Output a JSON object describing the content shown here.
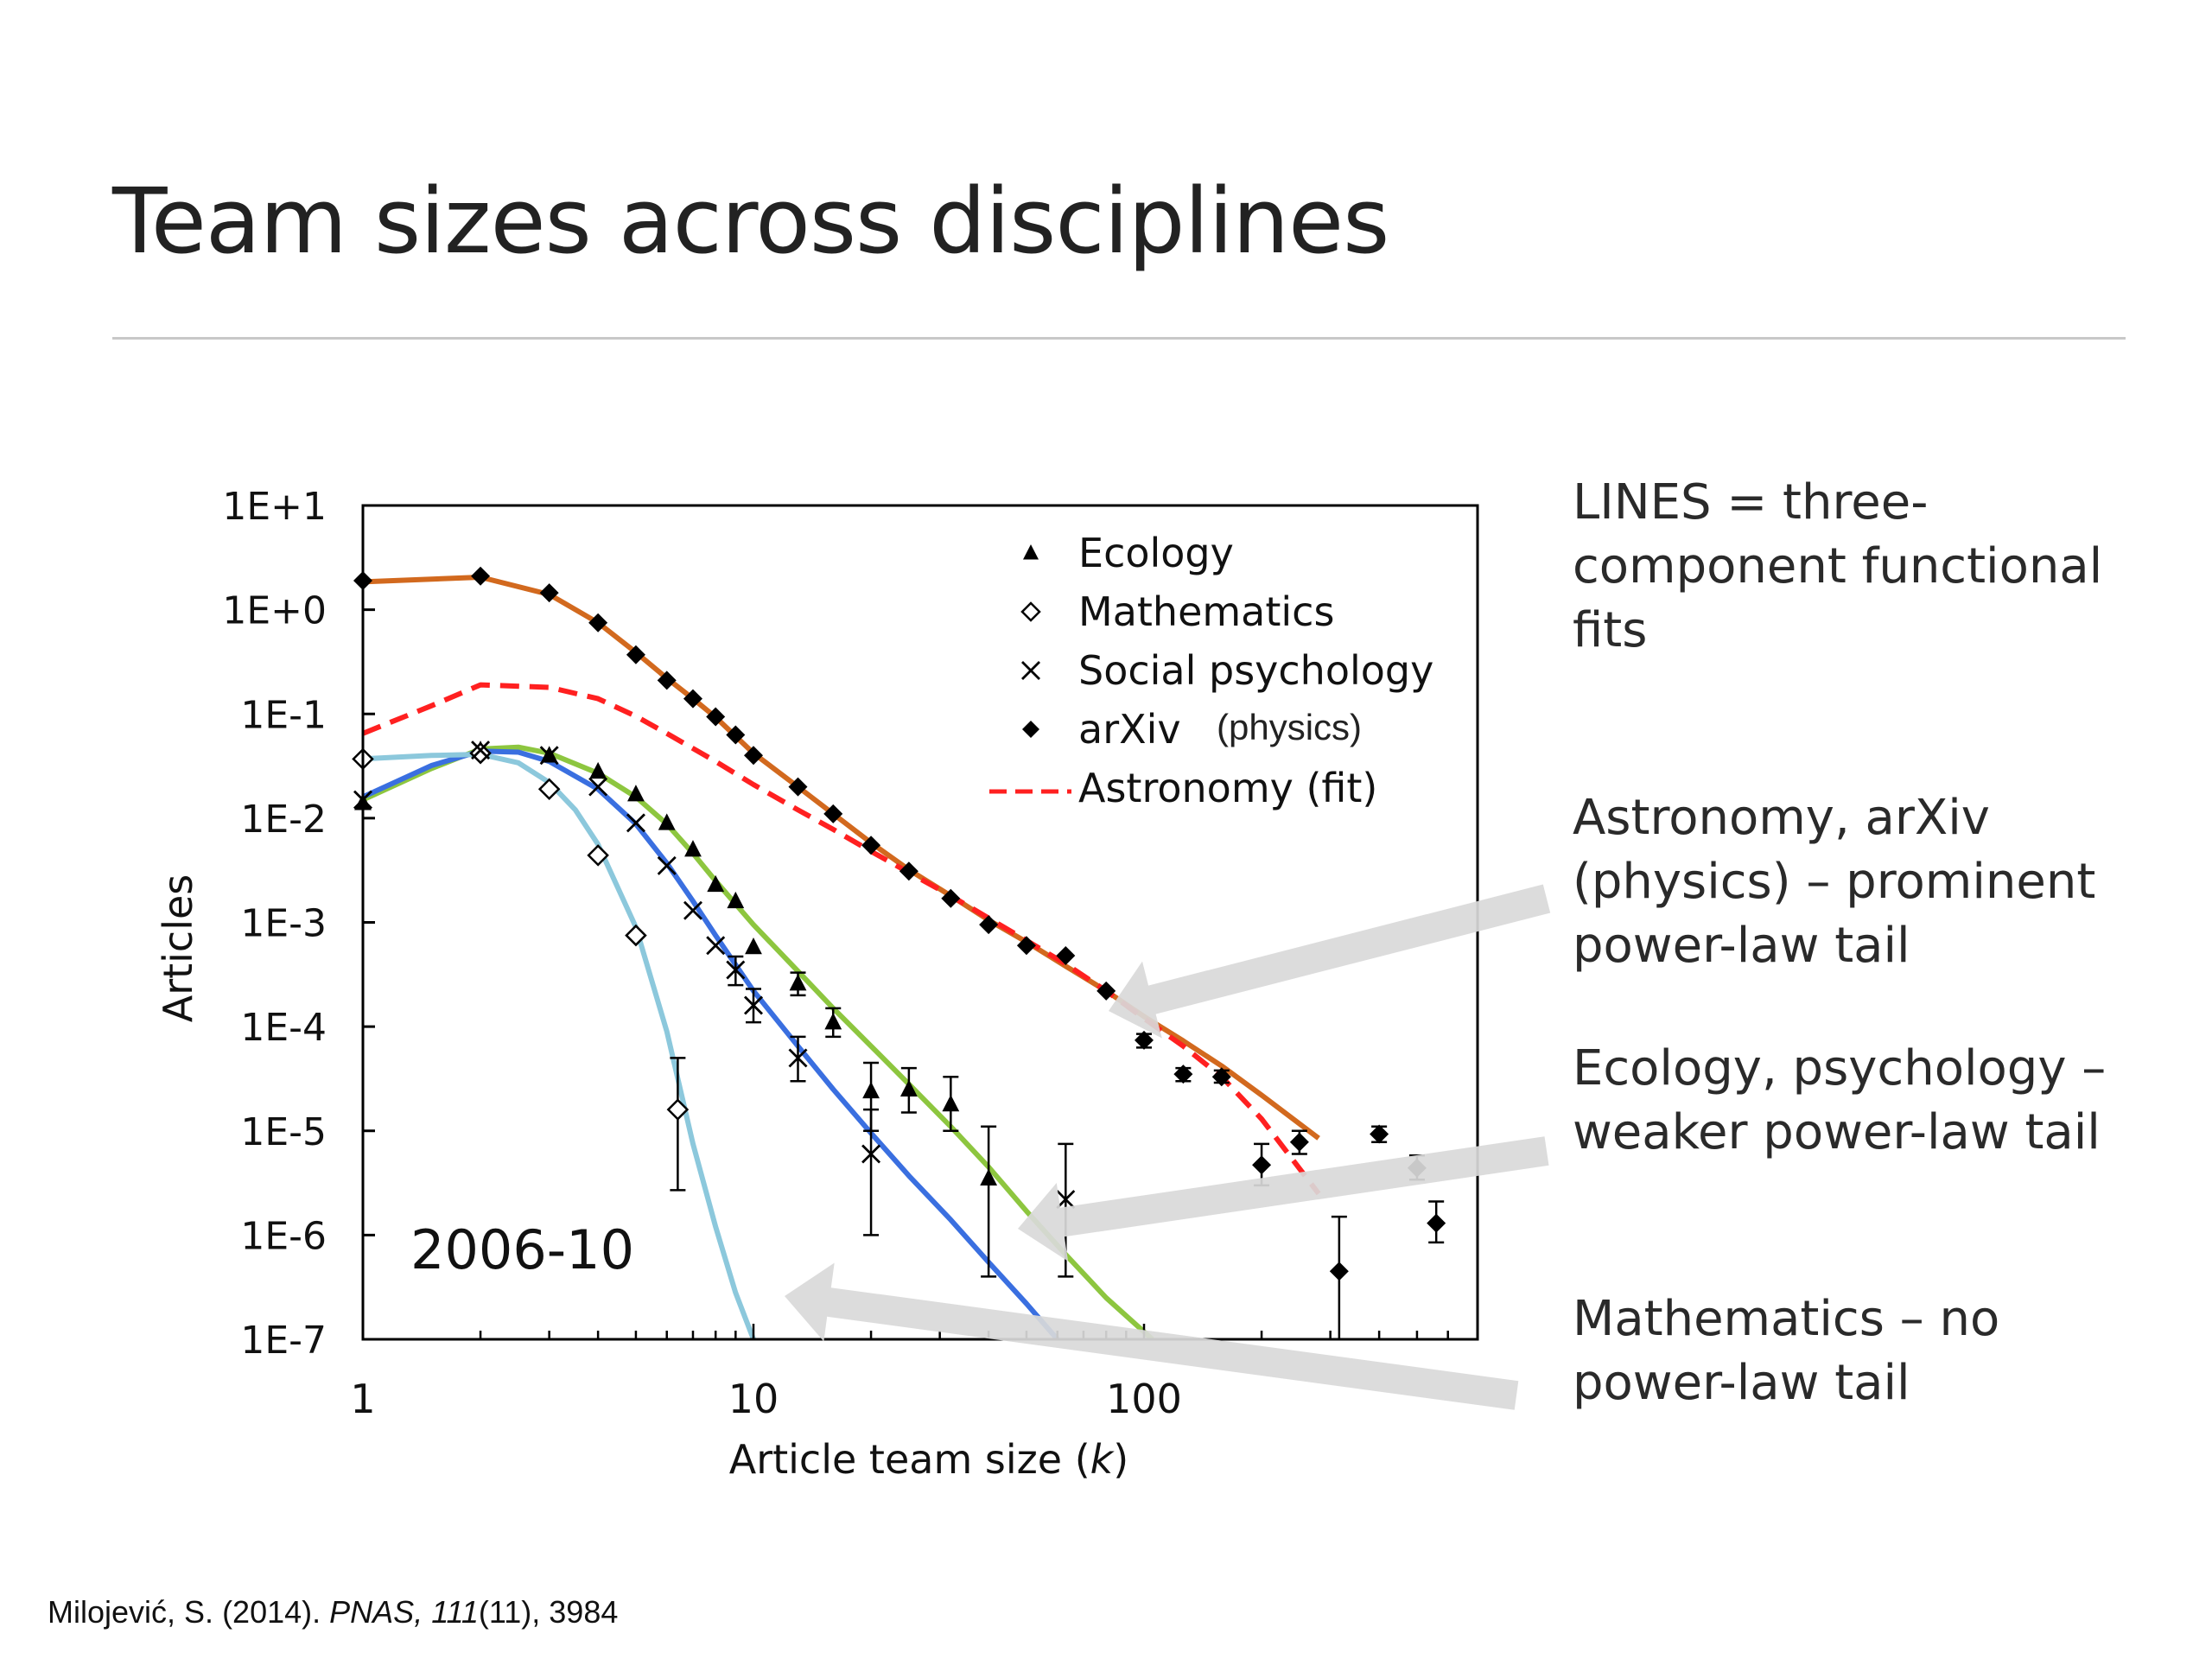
{
  "slide": {
    "title": "Team sizes across disciplines",
    "notes": [
      "LINES = three-component functional fits",
      "Astronomy, arXiv (physics) – prominent power-law tail",
      "Ecology, psychology – weaker power-law tail",
      "Mathematics – no power-law tail"
    ],
    "citation": {
      "author": "Milojević, S.",
      "year": "(2014).",
      "journal": "PNAS, 111",
      "issue": "(11), 3984"
    },
    "colors": {
      "arrow": "#d9d9d9",
      "text": "#222222"
    }
  },
  "chart_data": {
    "type": "scatter",
    "title": "",
    "xlabel": "Article team size (k)",
    "ylabel": "Articles",
    "x_scale": "log",
    "y_scale": "log",
    "xlim": [
      1,
      600
    ],
    "ylim": [
      1e-07,
      10
    ],
    "x_ticks": [
      {
        "value": 1,
        "label": "1"
      },
      {
        "value": 10,
        "label": "10"
      },
      {
        "value": 100,
        "label": "100"
      }
    ],
    "y_ticks": [
      {
        "value": 10,
        "label": "1E+1"
      },
      {
        "value": 1,
        "label": "1E+0"
      },
      {
        "value": 0.1,
        "label": "1E-1"
      },
      {
        "value": 0.01,
        "label": "1E-2"
      },
      {
        "value": 0.001,
        "label": "1E-3"
      },
      {
        "value": 0.0001,
        "label": "1E-4"
      },
      {
        "value": 1e-05,
        "label": "1E-5"
      },
      {
        "value": 1e-06,
        "label": "1E-6"
      },
      {
        "value": 1e-07,
        "label": "1E-7"
      }
    ],
    "annotation": "2006-10",
    "grid": false,
    "legend_position": "top-right",
    "series": [
      {
        "name": "Ecology",
        "marker": "triangle",
        "color": "#000000",
        "points": [
          {
            "x": 1,
            "y": 0.014
          },
          {
            "x": 2,
            "y": 0.045
          },
          {
            "x": 3,
            "y": 0.04
          },
          {
            "x": 4,
            "y": 0.028
          },
          {
            "x": 5,
            "y": 0.017
          },
          {
            "x": 6,
            "y": 0.009
          },
          {
            "x": 7,
            "y": 0.005
          },
          {
            "x": 8,
            "y": 0.0023
          },
          {
            "x": 9,
            "y": 0.0016
          },
          {
            "x": 10,
            "y": 0.00058
          },
          {
            "x": 13,
            "y": 0.00026
          },
          {
            "x": 16,
            "y": 0.00011
          },
          {
            "x": 20,
            "y": 2.4e-05
          },
          {
            "x": 25,
            "y": 2.5e-05
          },
          {
            "x": 32,
            "y": 1.8e-05
          },
          {
            "x": 40,
            "y": 3.5e-06
          }
        ],
        "errors": [
          {
            "x": 13,
            "lo": 0.0002,
            "hi": 0.00033
          },
          {
            "x": 16,
            "lo": 8e-05,
            "hi": 0.00015
          },
          {
            "x": 20,
            "lo": 1e-05,
            "hi": 4.5e-05
          },
          {
            "x": 25,
            "lo": 1.5e-05,
            "hi": 4e-05
          },
          {
            "x": 32,
            "lo": 1e-05,
            "hi": 3.3e-05
          },
          {
            "x": 40,
            "lo": 4e-07,
            "hi": 1.1e-05
          }
        ]
      },
      {
        "name": "Mathematics",
        "marker": "diamond-open",
        "color": "#000000",
        "points": [
          {
            "x": 1,
            "y": 0.037
          },
          {
            "x": 2,
            "y": 0.042
          },
          {
            "x": 3,
            "y": 0.019
          },
          {
            "x": 4,
            "y": 0.0044
          },
          {
            "x": 5,
            "y": 0.00075
          },
          {
            "x": 6.4,
            "y": 1.6e-05
          }
        ],
        "errors": [
          {
            "x": 6.4,
            "lo": 2.7e-06,
            "hi": 5e-05
          }
        ]
      },
      {
        "name": "Social psychology",
        "marker": "x",
        "color": "#000000",
        "points": [
          {
            "x": 1,
            "y": 0.015
          },
          {
            "x": 2,
            "y": 0.045
          },
          {
            "x": 3,
            "y": 0.04
          },
          {
            "x": 4,
            "y": 0.02
          },
          {
            "x": 5,
            "y": 0.009
          },
          {
            "x": 6,
            "y": 0.0035
          },
          {
            "x": 7,
            "y": 0.0013
          },
          {
            "x": 8,
            "y": 0.0006
          },
          {
            "x": 9,
            "y": 0.00035
          },
          {
            "x": 10,
            "y": 0.00016
          },
          {
            "x": 13,
            "y": 5e-05
          },
          {
            "x": 20,
            "y": 6e-06
          },
          {
            "x": 63,
            "y": 2.2e-06
          }
        ],
        "errors": [
          {
            "x": 9,
            "lo": 0.00025,
            "hi": 0.00047
          },
          {
            "x": 10,
            "lo": 0.00011,
            "hi": 0.00023
          },
          {
            "x": 13,
            "lo": 3e-05,
            "hi": 8e-05
          },
          {
            "x": 20,
            "lo": 1e-06,
            "hi": 1.6e-05
          },
          {
            "x": 63,
            "lo": 4e-07,
            "hi": 7.5e-06
          }
        ]
      },
      {
        "name": "arXiv (physics)",
        "marker": "diamond-filled",
        "color": "#000000",
        "points": [
          {
            "x": 1,
            "y": 1.9
          },
          {
            "x": 2,
            "y": 2.1
          },
          {
            "x": 3,
            "y": 1.45
          },
          {
            "x": 4,
            "y": 0.75
          },
          {
            "x": 5,
            "y": 0.37
          },
          {
            "x": 6,
            "y": 0.21
          },
          {
            "x": 7,
            "y": 0.14
          },
          {
            "x": 8,
            "y": 0.094
          },
          {
            "x": 9,
            "y": 0.063
          },
          {
            "x": 10,
            "y": 0.04
          },
          {
            "x": 13,
            "y": 0.02
          },
          {
            "x": 16,
            "y": 0.011
          },
          {
            "x": 20,
            "y": 0.0055
          },
          {
            "x": 25,
            "y": 0.0031
          },
          {
            "x": 32,
            "y": 0.0017
          },
          {
            "x": 40,
            "y": 0.00095
          },
          {
            "x": 50,
            "y": 0.0006
          },
          {
            "x": 63,
            "y": 0.00048
          },
          {
            "x": 80,
            "y": 0.00022
          },
          {
            "x": 100,
            "y": 7.4e-05
          },
          {
            "x": 126,
            "y": 3.5e-05
          },
          {
            "x": 158,
            "y": 3.3e-05
          },
          {
            "x": 200,
            "y": 4.7e-06
          },
          {
            "x": 250,
            "y": 7.8e-06
          },
          {
            "x": 316,
            "y": 4.5e-07
          },
          {
            "x": 400,
            "y": 9.3e-06
          },
          {
            "x": 500,
            "y": 4.4e-06
          },
          {
            "x": 560,
            "y": 1.3e-06
          }
        ],
        "errors": [
          {
            "x": 100,
            "lo": 6.3e-05,
            "hi": 8.5e-05
          },
          {
            "x": 126,
            "lo": 3e-05,
            "hi": 4e-05
          },
          {
            "x": 158,
            "lo": 2.9e-05,
            "hi": 3.8e-05
          },
          {
            "x": 200,
            "lo": 3e-06,
            "hi": 7.5e-06
          },
          {
            "x": 250,
            "lo": 6e-06,
            "hi": 1e-05
          },
          {
            "x": 316,
            "lo": 1e-07,
            "hi": 1.5e-06
          },
          {
            "x": 400,
            "lo": 7.8e-06,
            "hi": 1.1e-05
          },
          {
            "x": 500,
            "lo": 3.4e-06,
            "hi": 5.8e-06
          },
          {
            "x": 560,
            "lo": 8.5e-07,
            "hi": 2.1e-06
          }
        ]
      },
      {
        "name": "Astronomy (fit)",
        "marker": "dashed-line",
        "color": "#ff2020"
      }
    ],
    "fits": [
      {
        "name": "arXiv fit",
        "color": "#d2691e",
        "dashed": false,
        "points": [
          [
            1,
            1.85
          ],
          [
            2,
            2.05
          ],
          [
            3,
            1.4
          ],
          [
            4,
            0.75
          ],
          [
            5,
            0.39
          ],
          [
            6,
            0.22
          ],
          [
            7,
            0.14
          ],
          [
            8,
            0.093
          ],
          [
            10,
            0.042
          ],
          [
            13,
            0.02
          ],
          [
            16,
            0.011
          ],
          [
            20,
            0.0058
          ],
          [
            25,
            0.0032
          ],
          [
            32,
            0.0018
          ],
          [
            40,
            0.00105
          ],
          [
            50,
            0.00065
          ],
          [
            63,
            0.00038
          ],
          [
            80,
            0.00022
          ],
          [
            100,
            0.000125
          ],
          [
            126,
            7.3e-05
          ],
          [
            158,
            4.2e-05
          ],
          [
            200,
            2.2e-05
          ],
          [
            280,
            8.5e-06
          ]
        ]
      },
      {
        "name": "Astronomy fit",
        "color": "#ff2020",
        "dashed": true,
        "points": [
          [
            1,
            0.065
          ],
          [
            1.5,
            0.12
          ],
          [
            2,
            0.19
          ],
          [
            3,
            0.18
          ],
          [
            4,
            0.14
          ],
          [
            5,
            0.095
          ],
          [
            6,
            0.065
          ],
          [
            8,
            0.035
          ],
          [
            10,
            0.021
          ],
          [
            13,
            0.012
          ],
          [
            16,
            0.0078
          ],
          [
            20,
            0.0048
          ],
          [
            25,
            0.003
          ],
          [
            32,
            0.0018
          ],
          [
            40,
            0.0011
          ],
          [
            50,
            0.00067
          ],
          [
            63,
            0.0004
          ],
          [
            80,
            0.00022
          ],
          [
            100,
            0.00012
          ],
          [
            126,
            6.5e-05
          ],
          [
            158,
            3.3e-05
          ],
          [
            200,
            1.3e-05
          ],
          [
            280,
            2.5e-06
          ]
        ]
      },
      {
        "name": "Ecology fit",
        "color": "#8dc63f",
        "dashed": false,
        "points": [
          [
            1,
            0.015
          ],
          [
            1.5,
            0.03
          ],
          [
            2,
            0.046
          ],
          [
            2.5,
            0.048
          ],
          [
            3,
            0.042
          ],
          [
            4,
            0.027
          ],
          [
            5,
            0.016
          ],
          [
            6,
            0.0088
          ],
          [
            7,
            0.0046
          ],
          [
            8,
            0.0025
          ],
          [
            10,
            0.00095
          ],
          [
            13,
            0.00034
          ],
          [
            16,
            0.00015
          ],
          [
            20,
            6.5e-05
          ],
          [
            25,
            2.8e-05
          ],
          [
            32,
            1.1e-05
          ],
          [
            40,
            4.5e-06
          ],
          [
            50,
            1.7e-06
          ],
          [
            63,
            6.5e-07
          ],
          [
            80,
            2.5e-07
          ],
          [
            105,
            1e-07
          ]
        ]
      },
      {
        "name": "Social psychology fit",
        "color": "#3a6fe0",
        "dashed": false,
        "points": [
          [
            1,
            0.016
          ],
          [
            1.5,
            0.032
          ],
          [
            2,
            0.044
          ],
          [
            2.5,
            0.043
          ],
          [
            3,
            0.035
          ],
          [
            4,
            0.019
          ],
          [
            5,
            0.0088
          ],
          [
            6,
            0.0037
          ],
          [
            7,
            0.0016
          ],
          [
            8,
            0.00075
          ],
          [
            10,
            0.00022
          ],
          [
            13,
            6.5e-05
          ],
          [
            16,
            2.5e-05
          ],
          [
            20,
            9.5e-06
          ],
          [
            25,
            3.7e-06
          ],
          [
            32,
            1.4e-06
          ],
          [
            40,
            5.5e-07
          ],
          [
            50,
            2.2e-07
          ],
          [
            60,
            1e-07
          ]
        ]
      },
      {
        "name": "Mathematics fit",
        "color": "#8cc8dc",
        "dashed": false,
        "points": [
          [
            1,
            0.037
          ],
          [
            1.5,
            0.04
          ],
          [
            2,
            0.041
          ],
          [
            2.5,
            0.034
          ],
          [
            3,
            0.022
          ],
          [
            3.5,
            0.012
          ],
          [
            4,
            0.0056
          ],
          [
            5,
            0.0009
          ],
          [
            6,
            9e-05
          ],
          [
            7,
            7.5e-06
          ],
          [
            8,
            1.2e-06
          ],
          [
            9,
            2.8e-07
          ],
          [
            10,
            1e-07
          ]
        ]
      }
    ],
    "arrows": [
      {
        "target": "arXiv fit"
      },
      {
        "target": "Ecology fit"
      },
      {
        "target": "Mathematics fit"
      }
    ]
  }
}
